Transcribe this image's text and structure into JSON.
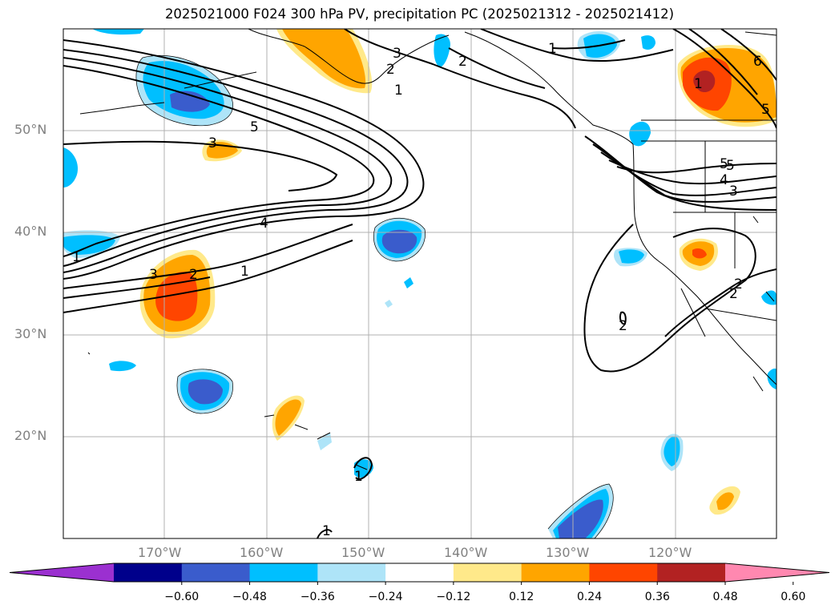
{
  "title": "2025021000 F024 300 hPa PV, precipitation PC (2025021312 - 2025021412)",
  "map": {
    "lat_labels": [
      "50°N",
      "40°N",
      "30°N",
      "20°N"
    ],
    "lon_labels": [
      "170°W",
      "160°W",
      "150°W",
      "140°W",
      "130°W",
      "120°W"
    ],
    "contour_labels": [
      "3",
      "2",
      "1",
      "5",
      "4",
      "3",
      "2",
      "1",
      "1",
      "2",
      "1",
      "3",
      "2",
      "1",
      "5",
      "4",
      "3",
      "2",
      "2",
      "1",
      "1",
      "6",
      "5",
      "5"
    ],
    "colorbar": {
      "tick_labels": [
        "−0.60",
        "−0.48",
        "−0.36",
        "−0.24",
        "−0.12",
        "0.12",
        "0.24",
        "0.36",
        "0.48",
        "0.60"
      ],
      "colors": [
        "#9b30d0",
        "#00008b",
        "#3a5ccc",
        "#00bfff",
        "#aee4f8",
        "#ffffff",
        "#ffe98a",
        "#ffa500",
        "#ff4500",
        "#b22222",
        "#ff88b0"
      ]
    }
  }
}
